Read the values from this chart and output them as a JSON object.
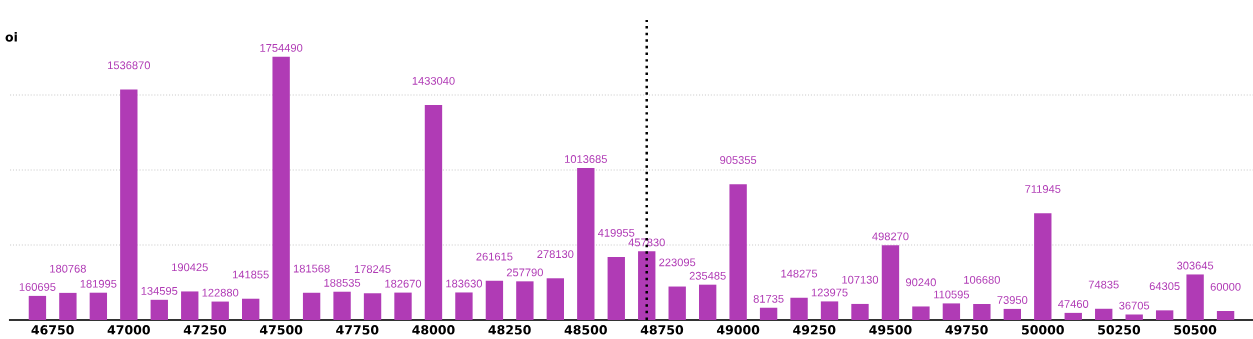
{
  "chart_data": {
    "type": "bar",
    "ylabel": "oi",
    "x": [
      46700,
      46800,
      46900,
      47000,
      47100,
      47200,
      47300,
      47400,
      47500,
      47600,
      47700,
      47800,
      47900,
      48000,
      48100,
      48200,
      48300,
      48400,
      48500,
      48600,
      48700,
      48800,
      48900,
      49000,
      49100,
      49200,
      49300,
      49400,
      49500,
      49600,
      49700,
      49800,
      49900,
      50000,
      50100,
      50200,
      50300,
      50400,
      50500,
      50600
    ],
    "values": [
      160695,
      180768,
      181995,
      1536870,
      134595,
      190425,
      122880,
      141855,
      1754490,
      181568,
      188535,
      178245,
      182670,
      1433040,
      183630,
      261615,
      257790,
      278130,
      1013685,
      419955,
      457830,
      223095,
      235485,
      905355,
      81735,
      148275,
      123975,
      107130,
      498270,
      90240,
      110595,
      106680,
      73950,
      711945,
      47460,
      74835,
      36705,
      64305,
      303645,
      60000
    ],
    "color": "#b03bb5",
    "data_labels": true,
    "xlim": [
      46610,
      50690
    ],
    "xticks": [
      46750,
      47000,
      47250,
      47500,
      47750,
      48000,
      48250,
      48500,
      48750,
      49000,
      49250,
      49500,
      49750,
      50000,
      50250,
      50500
    ],
    "ylim": [
      0,
      2000000
    ],
    "yticks": [
      {
        "value": 500000,
        "label": null
      },
      {
        "value": 1000000,
        "label": null
      },
      {
        "value": 1500000,
        "label": null
      }
    ],
    "tick_labels": "x",
    "grid": "y",
    "ref_lines": [
      {
        "axis": "x",
        "value": 48700,
        "label": null,
        "color": "#000000",
        "line_style": "dotted"
      }
    ]
  }
}
